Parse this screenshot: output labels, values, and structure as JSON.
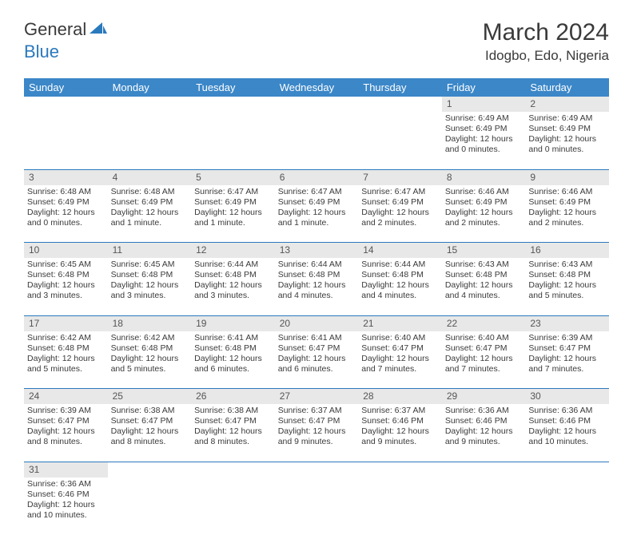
{
  "logo": {
    "word1": "General",
    "word2": "Blue"
  },
  "title": "March 2024",
  "location": "Idogbo, Edo, Nigeria",
  "headerColor": "#3b87c8",
  "dayHeaders": [
    "Sunday",
    "Monday",
    "Tuesday",
    "Wednesday",
    "Thursday",
    "Friday",
    "Saturday"
  ],
  "weeks": [
    {
      "nums": [
        "",
        "",
        "",
        "",
        "",
        "1",
        "2"
      ],
      "cells": [
        null,
        null,
        null,
        null,
        null,
        {
          "sunrise": "6:49 AM",
          "sunset": "6:49 PM",
          "daylight": "12 hours and 0 minutes."
        },
        {
          "sunrise": "6:49 AM",
          "sunset": "6:49 PM",
          "daylight": "12 hours and 0 minutes."
        }
      ]
    },
    {
      "nums": [
        "3",
        "4",
        "5",
        "6",
        "7",
        "8",
        "9"
      ],
      "cells": [
        {
          "sunrise": "6:48 AM",
          "sunset": "6:49 PM",
          "daylight": "12 hours and 0 minutes."
        },
        {
          "sunrise": "6:48 AM",
          "sunset": "6:49 PM",
          "daylight": "12 hours and 1 minute."
        },
        {
          "sunrise": "6:47 AM",
          "sunset": "6:49 PM",
          "daylight": "12 hours and 1 minute."
        },
        {
          "sunrise": "6:47 AM",
          "sunset": "6:49 PM",
          "daylight": "12 hours and 1 minute."
        },
        {
          "sunrise": "6:47 AM",
          "sunset": "6:49 PM",
          "daylight": "12 hours and 2 minutes."
        },
        {
          "sunrise": "6:46 AM",
          "sunset": "6:49 PM",
          "daylight": "12 hours and 2 minutes."
        },
        {
          "sunrise": "6:46 AM",
          "sunset": "6:49 PM",
          "daylight": "12 hours and 2 minutes."
        }
      ]
    },
    {
      "nums": [
        "10",
        "11",
        "12",
        "13",
        "14",
        "15",
        "16"
      ],
      "cells": [
        {
          "sunrise": "6:45 AM",
          "sunset": "6:48 PM",
          "daylight": "12 hours and 3 minutes."
        },
        {
          "sunrise": "6:45 AM",
          "sunset": "6:48 PM",
          "daylight": "12 hours and 3 minutes."
        },
        {
          "sunrise": "6:44 AM",
          "sunset": "6:48 PM",
          "daylight": "12 hours and 3 minutes."
        },
        {
          "sunrise": "6:44 AM",
          "sunset": "6:48 PM",
          "daylight": "12 hours and 4 minutes."
        },
        {
          "sunrise": "6:44 AM",
          "sunset": "6:48 PM",
          "daylight": "12 hours and 4 minutes."
        },
        {
          "sunrise": "6:43 AM",
          "sunset": "6:48 PM",
          "daylight": "12 hours and 4 minutes."
        },
        {
          "sunrise": "6:43 AM",
          "sunset": "6:48 PM",
          "daylight": "12 hours and 5 minutes."
        }
      ]
    },
    {
      "nums": [
        "17",
        "18",
        "19",
        "20",
        "21",
        "22",
        "23"
      ],
      "cells": [
        {
          "sunrise": "6:42 AM",
          "sunset": "6:48 PM",
          "daylight": "12 hours and 5 minutes."
        },
        {
          "sunrise": "6:42 AM",
          "sunset": "6:48 PM",
          "daylight": "12 hours and 5 minutes."
        },
        {
          "sunrise": "6:41 AM",
          "sunset": "6:48 PM",
          "daylight": "12 hours and 6 minutes."
        },
        {
          "sunrise": "6:41 AM",
          "sunset": "6:47 PM",
          "daylight": "12 hours and 6 minutes."
        },
        {
          "sunrise": "6:40 AM",
          "sunset": "6:47 PM",
          "daylight": "12 hours and 7 minutes."
        },
        {
          "sunrise": "6:40 AM",
          "sunset": "6:47 PM",
          "daylight": "12 hours and 7 minutes."
        },
        {
          "sunrise": "6:39 AM",
          "sunset": "6:47 PM",
          "daylight": "12 hours and 7 minutes."
        }
      ]
    },
    {
      "nums": [
        "24",
        "25",
        "26",
        "27",
        "28",
        "29",
        "30"
      ],
      "cells": [
        {
          "sunrise": "6:39 AM",
          "sunset": "6:47 PM",
          "daylight": "12 hours and 8 minutes."
        },
        {
          "sunrise": "6:38 AM",
          "sunset": "6:47 PM",
          "daylight": "12 hours and 8 minutes."
        },
        {
          "sunrise": "6:38 AM",
          "sunset": "6:47 PM",
          "daylight": "12 hours and 8 minutes."
        },
        {
          "sunrise": "6:37 AM",
          "sunset": "6:47 PM",
          "daylight": "12 hours and 9 minutes."
        },
        {
          "sunrise": "6:37 AM",
          "sunset": "6:46 PM",
          "daylight": "12 hours and 9 minutes."
        },
        {
          "sunrise": "6:36 AM",
          "sunset": "6:46 PM",
          "daylight": "12 hours and 9 minutes."
        },
        {
          "sunrise": "6:36 AM",
          "sunset": "6:46 PM",
          "daylight": "12 hours and 10 minutes."
        }
      ]
    },
    {
      "nums": [
        "31",
        "",
        "",
        "",
        "",
        "",
        ""
      ],
      "cells": [
        {
          "sunrise": "6:36 AM",
          "sunset": "6:46 PM",
          "daylight": "12 hours and 10 minutes."
        },
        null,
        null,
        null,
        null,
        null,
        null
      ]
    }
  ]
}
